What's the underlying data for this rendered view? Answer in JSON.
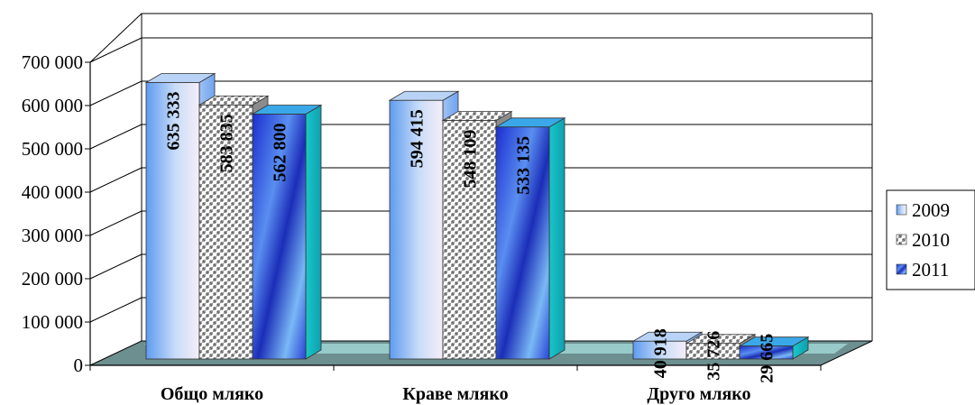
{
  "chart_data": {
    "type": "bar",
    "categories": [
      "Общо мляко",
      "Краве мляко",
      "Друго мляко"
    ],
    "series": [
      {
        "name": "2009",
        "values": [
          635333,
          594415,
          40918
        ],
        "labels": [
          "635 333",
          "594 415",
          "40 918"
        ],
        "color": "#7fb0f2"
      },
      {
        "name": "2010",
        "values": [
          583835,
          548109,
          35726
        ],
        "labels": [
          "583 835",
          "548 109",
          "35 726"
        ],
        "color": "#9a9a9a"
      },
      {
        "name": "2011",
        "values": [
          562800,
          533135,
          29665
        ],
        "labels": [
          "562 800",
          "533 135",
          "29 665"
        ],
        "color": "#2f4fd6"
      }
    ],
    "yticks": [
      "0",
      "100 000",
      "200 000",
      "300 000",
      "400 000",
      "500 000",
      "600 000",
      "700 000"
    ],
    "ylim": [
      0,
      700000
    ],
    "grid": true,
    "legend": "right",
    "three_d": true
  }
}
